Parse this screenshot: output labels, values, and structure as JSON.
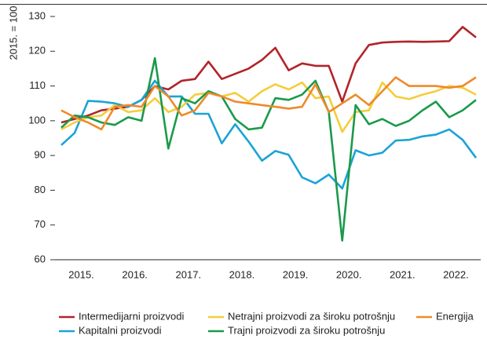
{
  "chart_data": {
    "type": "line",
    "y_label": "2015. = 100",
    "categories": [
      null,
      "2015.",
      null,
      null,
      null,
      "2016.",
      null,
      null,
      null,
      "2017.",
      null,
      null,
      null,
      "2018.",
      null,
      null,
      null,
      "2019.",
      null,
      null,
      null,
      "2020.",
      null,
      null,
      null,
      "2021.",
      null,
      null,
      null,
      "2022.",
      null,
      null
    ],
    "series": [
      {
        "name": "Intermedijarni proizvodi",
        "color": "#b2242a",
        "values": [
          99.5,
          100.5,
          101.5,
          103,
          103.5,
          104,
          106,
          110,
          109,
          111.5,
          112,
          117,
          112,
          113.5,
          115,
          117.5,
          121,
          114.5,
          116.5,
          115.8,
          115.8,
          105.5,
          116.5,
          121.8,
          122.5,
          122.7,
          122.8,
          122.7,
          122.8,
          122.9,
          127,
          124
        ]
      },
      {
        "name": "Kapitalni proizvodi",
        "color": "#1ba3d6",
        "values": [
          93,
          96.5,
          105.7,
          105.5,
          105,
          104,
          106,
          111.5,
          107,
          107,
          102,
          102,
          93.5,
          99,
          94,
          88.5,
          91.3,
          90.2,
          83.7,
          82,
          84.5,
          80.5,
          91.5,
          90,
          90.8,
          94.3,
          94.5,
          95.5,
          96,
          97.5,
          94.5,
          89.3
        ]
      },
      {
        "name": "Netrajni proizvodi za široku potrošnju",
        "color": "#f4cd3c",
        "values": [
          97.5,
          99.5,
          101,
          101.5,
          104.5,
          102.5,
          103,
          106.5,
          102.5,
          104,
          107.5,
          108,
          107,
          108,
          105.5,
          108.5,
          110.5,
          109,
          111,
          106.5,
          107,
          96.8,
          102.5,
          103,
          111,
          107,
          106.2,
          107.5,
          108.5,
          110,
          109.5,
          107.5
        ]
      },
      {
        "name": "Trajni proizvodi za široku potrošnju",
        "color": "#1a9a4a",
        "values": [
          98,
          101.5,
          101,
          99.5,
          98.8,
          101,
          100,
          118,
          92,
          106.5,
          105,
          108.5,
          107,
          100.5,
          97.5,
          98,
          106.5,
          106,
          107.5,
          111.5,
          102.5,
          65.5,
          104.5,
          99,
          100.5,
          98.5,
          100,
          103,
          105.5,
          101,
          103,
          106
        ]
      },
      {
        "name": "Energija",
        "color": "#ee8a2a",
        "values": [
          103,
          101,
          99.5,
          97.5,
          104,
          104.5,
          104,
          110,
          107,
          101.5,
          103,
          108,
          107,
          105.5,
          105,
          104.5,
          104,
          103.5,
          104,
          110.5,
          102.5,
          105,
          107.5,
          104.5,
          108.5,
          112.5,
          110,
          110,
          110,
          109.5,
          110,
          112.5
        ]
      }
    ],
    "ylim": [
      60,
      130
    ],
    "yticks": [
      60,
      70,
      80,
      90,
      100,
      110,
      120,
      130
    ],
    "grid": false
  }
}
